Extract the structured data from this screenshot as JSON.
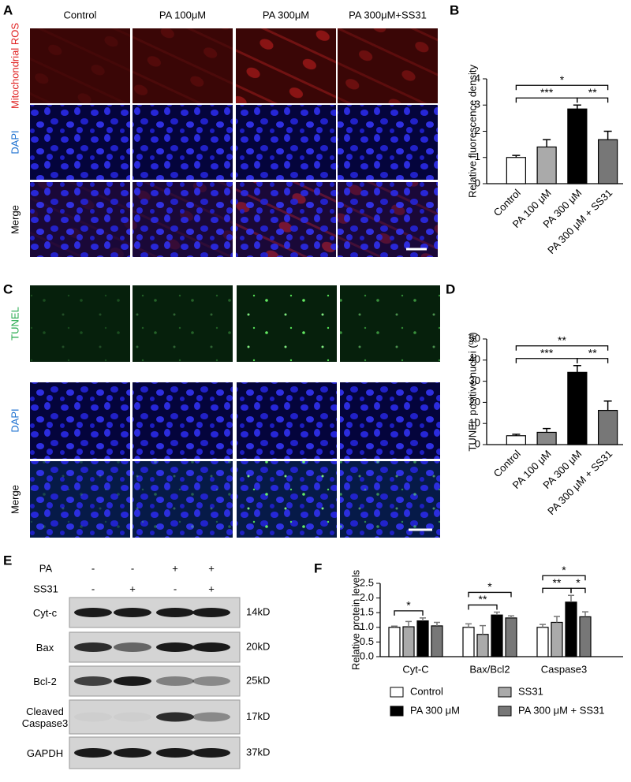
{
  "image_panels": [
    {
      "label": "A",
      "columns": [
        "Control",
        "PA 100μM",
        "PA 300μM",
        "PA 300μM+SS31"
      ],
      "rows": [
        {
          "name": "Mitochondrial ROS",
          "color": "#e02020"
        },
        {
          "name": "DAPI",
          "color": "#1a6fd0"
        },
        {
          "name": "Merge",
          "color": "#000000"
        }
      ]
    },
    {
      "label": "C",
      "columns": [
        "Control",
        "PA 100μM",
        "PA 300μM",
        "PA 300μM+SS31"
      ],
      "rows": [
        {
          "name": "TUNEL",
          "color": "#22a84a"
        },
        {
          "name": "DAPI",
          "color": "#1a6fd0"
        },
        {
          "name": "Merge",
          "color": "#000000"
        }
      ]
    }
  ],
  "western_blot": {
    "label": "E",
    "treatments": [
      {
        "name": "PA",
        "signs": [
          "-",
          "-",
          "+",
          "+"
        ]
      },
      {
        "name": "SS31",
        "signs": [
          "-",
          "+",
          "-",
          "+"
        ]
      }
    ],
    "blots": [
      {
        "name": "Cyt-c",
        "size": "14kD"
      },
      {
        "name": "Bax",
        "size": "20kD"
      },
      {
        "name": "Bcl-2",
        "size": "25kD"
      },
      {
        "name": "Cleaved Caspase3",
        "size": "17kD"
      },
      {
        "name": "GAPDH",
        "size": "37kD"
      }
    ]
  },
  "chart_data": [
    {
      "type": "bar",
      "panel": "B",
      "ylabel": "Relative fluorescence density",
      "categories": [
        "Control",
        "PA 100 μM",
        "PA 300 μM",
        "PA 300 μM + SS31"
      ],
      "values": [
        1.0,
        1.4,
        2.85,
        1.68
      ],
      "errors": [
        0.08,
        0.28,
        0.15,
        0.32
      ],
      "colors": [
        "#ffffff",
        "#aaaaaa",
        "#000000",
        "#777777"
      ],
      "ylim": [
        0,
        4
      ],
      "yticks": [
        0,
        1,
        2,
        3,
        4
      ],
      "significance": [
        {
          "from": "Control",
          "to": "PA 300 μM + SS31",
          "label": "*"
        },
        {
          "from": "Control",
          "to": "PA 300 μM",
          "label": "***"
        },
        {
          "from": "PA 300 μM",
          "to": "PA 300 μM + SS31",
          "label": "**"
        }
      ]
    },
    {
      "type": "bar",
      "panel": "D",
      "ylabel": "TUNEL positive nuclei (%)",
      "categories": [
        "Control",
        "PA 100 μM",
        "PA 300 μM",
        "PA 300 μM + SS31"
      ],
      "values": [
        4.2,
        5.8,
        34.2,
        16.2
      ],
      "errors": [
        0.7,
        1.8,
        3.2,
        4.4
      ],
      "colors": [
        "#ffffff",
        "#888888",
        "#000000",
        "#777777"
      ],
      "ylim": [
        0,
        50
      ],
      "yticks": [
        0,
        10,
        20,
        30,
        40,
        50
      ],
      "significance": [
        {
          "from": "Control",
          "to": "PA 300 μM + SS31",
          "label": "**"
        },
        {
          "from": "Control",
          "to": "PA 300 μM",
          "label": "***"
        },
        {
          "from": "PA 300 μM",
          "to": "PA 300 μM + SS31",
          "label": "**"
        }
      ]
    },
    {
      "type": "grouped_bar",
      "panel": "F",
      "ylabel": "Relative protein levels",
      "categories": [
        "Cyt-C",
        "Bax/Bcl2",
        "Caspase3"
      ],
      "series": [
        {
          "name": "Control",
          "color": "#ffffff",
          "values": [
            1.0,
            1.0,
            1.0
          ],
          "errors": [
            0.04,
            0.12,
            0.1
          ]
        },
        {
          "name": "SS31",
          "color": "#aaaaaa",
          "values": [
            1.02,
            0.76,
            1.17
          ],
          "errors": [
            0.18,
            0.3,
            0.2
          ]
        },
        {
          "name": "PA 300 μM",
          "color": "#000000",
          "values": [
            1.22,
            1.42,
            1.86
          ],
          "errors": [
            0.1,
            0.1,
            0.23
          ]
        },
        {
          "name": "PA 300 μM + SS31",
          "color": "#777777",
          "values": [
            1.05,
            1.32,
            1.36
          ],
          "errors": [
            0.12,
            0.07,
            0.17
          ]
        }
      ],
      "ylim": [
        0,
        2.5
      ],
      "yticks": [
        {
          "value": 0,
          "label": "0.0"
        },
        0.5,
        {
          "value": 1,
          "label": "1.0"
        },
        1.5,
        {
          "value": 2,
          "label": "2.0"
        },
        2.5
      ],
      "significance": [
        {
          "category": "Cyt-C",
          "from": "Control",
          "to": "PA 300 μM",
          "label": "*"
        },
        {
          "category": "Bax/Bcl2",
          "from": "Control",
          "to": "PA 300 μM",
          "label": "**"
        },
        {
          "category": "Bax/Bcl2",
          "from": "Control",
          "to": "PA 300 μM + SS31",
          "label": "*"
        },
        {
          "category": "Caspase3",
          "from": "Control",
          "to": "PA 300 μM",
          "label": "**"
        },
        {
          "category": "Caspase3",
          "from": "PA 300 μM",
          "to": "PA 300 μM + SS31",
          "label": "*"
        },
        {
          "category": "Caspase3",
          "from": "Control",
          "to": "PA 300 μM + SS31",
          "label": "*"
        }
      ]
    }
  ]
}
